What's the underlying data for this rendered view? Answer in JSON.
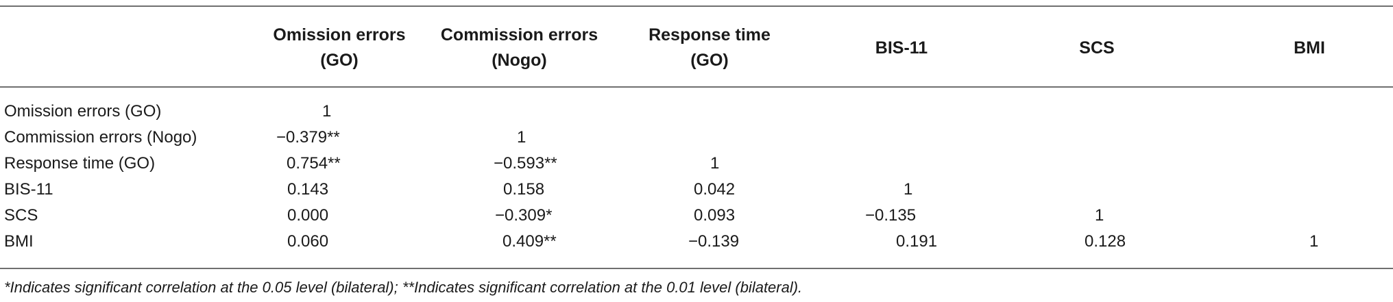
{
  "table": {
    "columns": [
      {
        "line1": "Omission errors",
        "line2": "(GO)"
      },
      {
        "line1": "Commission errors",
        "line2": "(Nogo)"
      },
      {
        "line1": "Response time",
        "line2": "(GO)"
      },
      {
        "line1": "BIS-11",
        "line2": ""
      },
      {
        "line1": "SCS",
        "line2": ""
      },
      {
        "line1": "BMI",
        "line2": ""
      }
    ],
    "rows": [
      {
        "label": "Omission errors (GO)",
        "cells": [
          "1",
          "",
          "",
          "",
          "",
          ""
        ]
      },
      {
        "label": "Commission errors (Nogo)",
        "cells": [
          "−0.379**",
          "1",
          "",
          "",
          "",
          ""
        ]
      },
      {
        "label": "Response time (GO)",
        "cells": [
          "0.754**",
          "−0.593**",
          "1",
          "",
          "",
          ""
        ]
      },
      {
        "label": "BIS-11",
        "cells": [
          "0.143",
          "0.158",
          "0.042",
          "1",
          "",
          ""
        ]
      },
      {
        "label": "SCS",
        "cells": [
          "0.000",
          "−0.309*",
          "0.093",
          "−0.135",
          "1",
          ""
        ]
      },
      {
        "label": "BMI",
        "cells": [
          "0.060",
          "0.409**",
          "−0.139",
          "0.191",
          "0.128",
          "1"
        ]
      }
    ]
  },
  "footnote": "*Indicates significant correlation at the 0.05 level (bilateral); **Indicates significant correlation at the 0.01 level (bilateral)."
}
